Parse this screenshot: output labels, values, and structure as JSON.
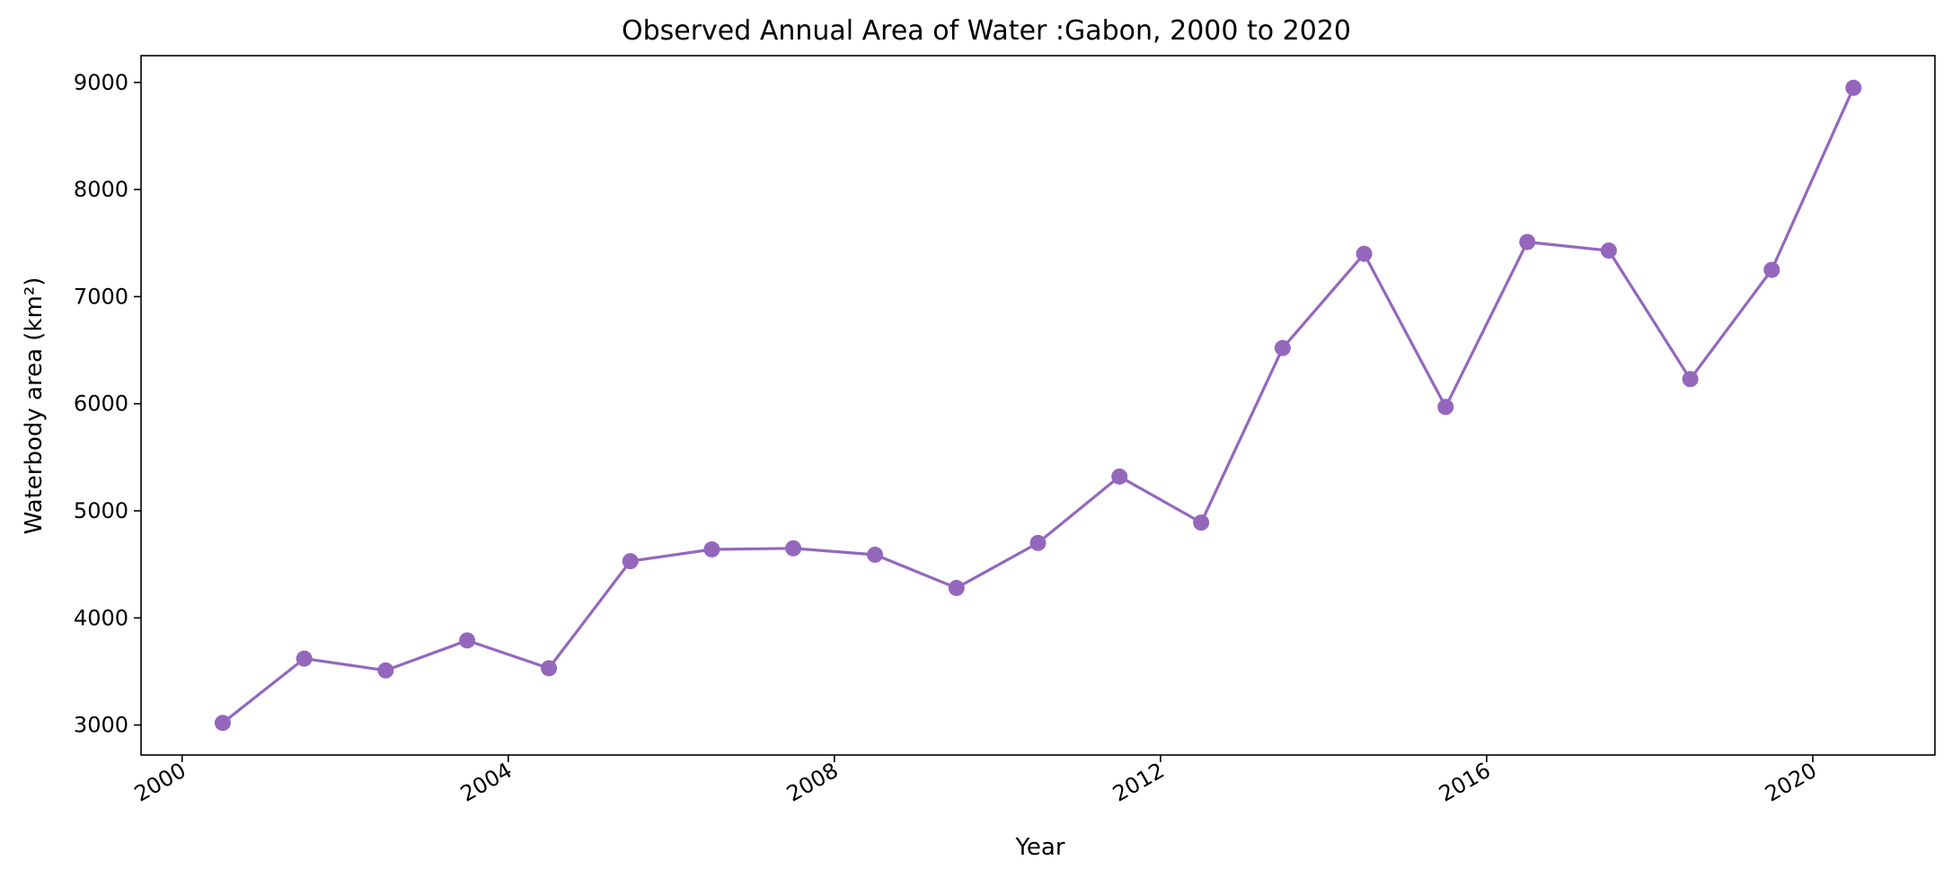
{
  "chart_data": {
    "type": "line",
    "title": "Observed Annual Area of Water :Gabon, 2000 to 2020",
    "xlabel": "Year",
    "ylabel": "Waterbody area (km²)",
    "x_ticks": [
      "2000",
      "2004",
      "2008",
      "2012",
      "2016",
      "2020"
    ],
    "x_tick_values": [
      "2000-01-01",
      "2004-01-01",
      "2008-01-01",
      "2012-01-01",
      "2016-01-01",
      "2020-01-01"
    ],
    "y_ticks": [
      3000,
      4000,
      5000,
      6000,
      7000,
      8000,
      9000
    ],
    "xlim": [
      "1999-07-01",
      "2021-07-01"
    ],
    "ylim": [
      2720,
      9250
    ],
    "grid": false,
    "series": [
      {
        "color": "#9467bd",
        "marker": "circle",
        "points": [
          {
            "x": "2000-07-01",
            "y": 3020
          },
          {
            "x": "2001-07-01",
            "y": 3620
          },
          {
            "x": "2002-07-01",
            "y": 3510
          },
          {
            "x": "2003-07-01",
            "y": 3790
          },
          {
            "x": "2004-07-01",
            "y": 3530
          },
          {
            "x": "2005-07-01",
            "y": 4530
          },
          {
            "x": "2006-07-01",
            "y": 4640
          },
          {
            "x": "2007-07-01",
            "y": 4650
          },
          {
            "x": "2008-07-01",
            "y": 4590
          },
          {
            "x": "2009-07-01",
            "y": 4280
          },
          {
            "x": "2010-07-01",
            "y": 4700
          },
          {
            "x": "2011-07-01",
            "y": 5320
          },
          {
            "x": "2012-07-01",
            "y": 4890
          },
          {
            "x": "2013-07-01",
            "y": 6520
          },
          {
            "x": "2014-07-01",
            "y": 7400
          },
          {
            "x": "2015-07-01",
            "y": 5970
          },
          {
            "x": "2016-07-01",
            "y": 7510
          },
          {
            "x": "2017-07-01",
            "y": 7430
          },
          {
            "x": "2018-07-01",
            "y": 6230
          },
          {
            "x": "2019-07-01",
            "y": 7250
          },
          {
            "x": "2020-07-01",
            "y": 8950
          }
        ]
      }
    ]
  }
}
